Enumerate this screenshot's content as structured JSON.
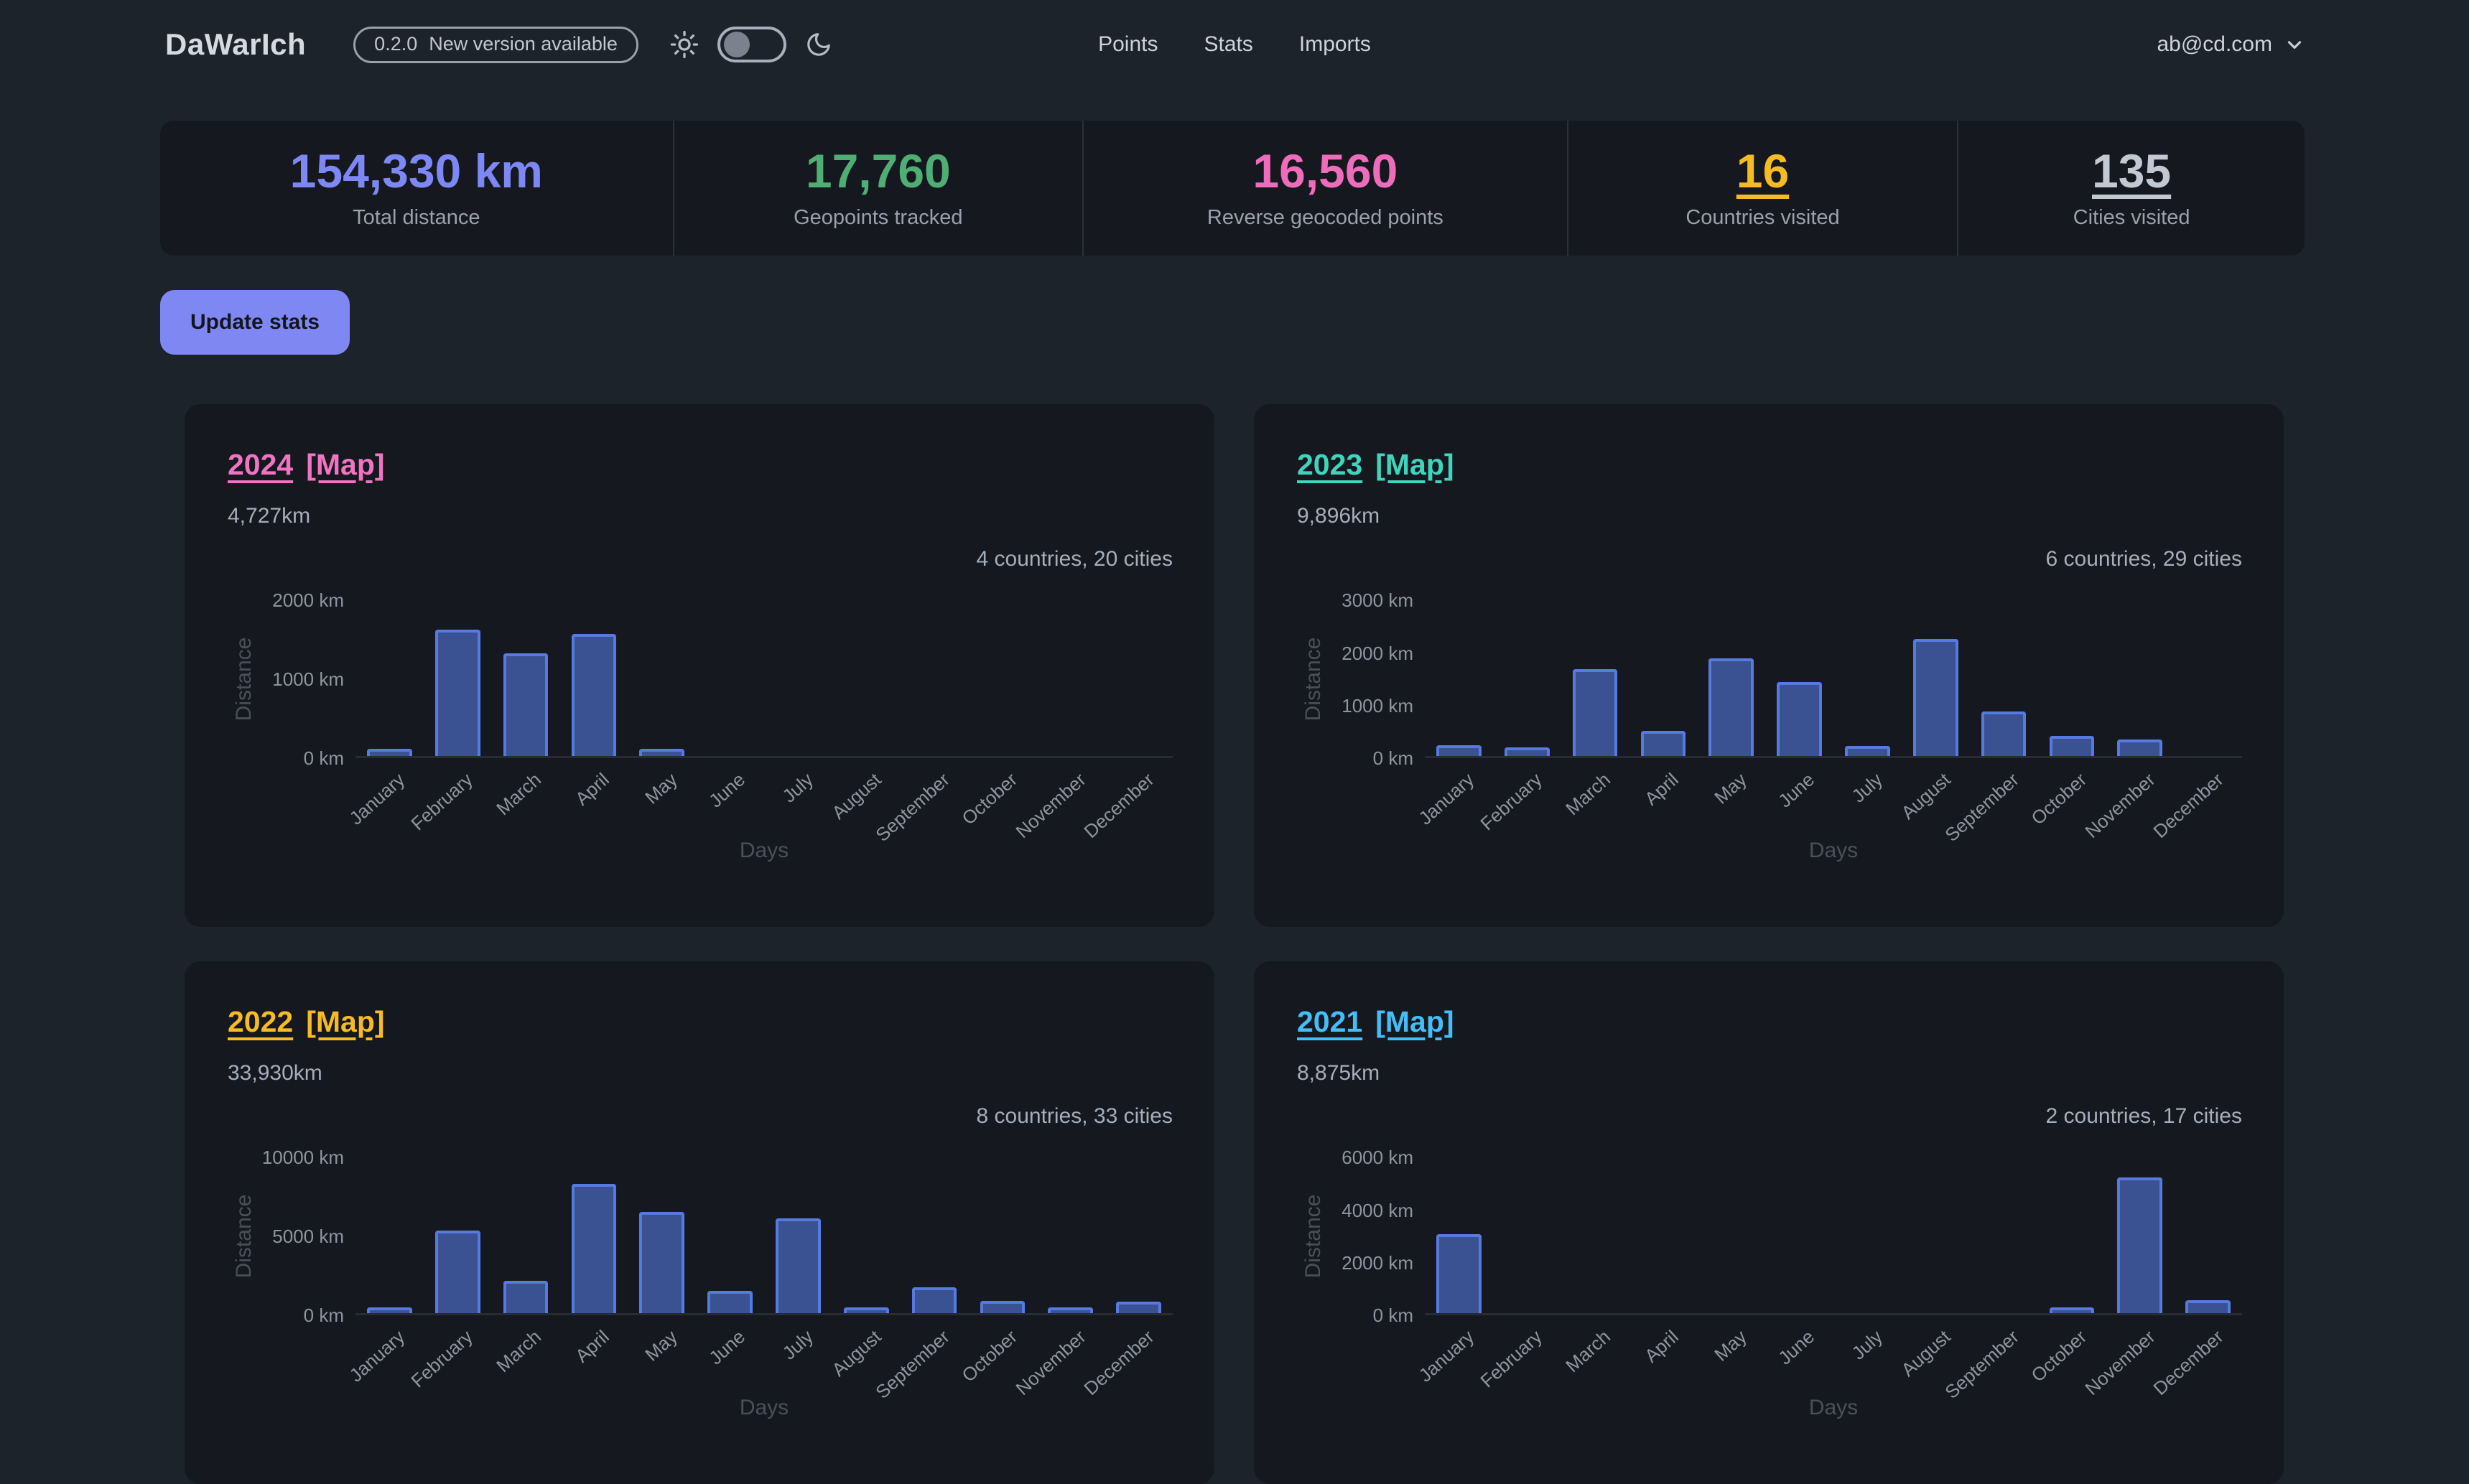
{
  "header": {
    "logo": "DaWarIch",
    "version_badge": {
      "version": "0.2.0",
      "message": "New version available"
    },
    "nav": [
      {
        "label": "Points"
      },
      {
        "label": "Stats"
      },
      {
        "label": "Imports"
      }
    ],
    "account": {
      "email": "ab@cd.com"
    },
    "icons": [
      "sun-icon",
      "moon-icon",
      "chevron-down-icon"
    ],
    "theme_toggle_on": false
  },
  "stats": [
    {
      "value": "154,330 km",
      "label": "Total distance",
      "color": "#7e88f5",
      "underline": false
    },
    {
      "value": "17,760",
      "label": "Geopoints tracked",
      "color": "#4fae74",
      "underline": false
    },
    {
      "value": "16,560",
      "label": "Reverse geocoded points",
      "color": "#ef6cbb",
      "underline": false
    },
    {
      "value": "16",
      "label": "Countries visited",
      "color": "#f6ba23",
      "underline": true
    },
    {
      "value": "135",
      "label": "Cities visited",
      "color": "#c3c9d3",
      "underline": true
    }
  ],
  "actions": {
    "update_stats": "Update stats"
  },
  "colors": {
    "page_bg": "#1d232b",
    "card_bg": "#15191f",
    "bar_fill": "#3a5292",
    "bar_border": "#567ae0",
    "button_bg": "#7f88f2"
  },
  "chart_data": [
    {
      "type": "bar",
      "year": "2024",
      "year_color": "#f074c2",
      "map_label": "[Map]",
      "total_distance": "4,727km",
      "summary": "4 countries, 20 cities",
      "categories": [
        "January",
        "February",
        "March",
        "April",
        "May",
        "June",
        "July",
        "August",
        "September",
        "October",
        "November",
        "December"
      ],
      "values": [
        90,
        1600,
        1300,
        1550,
        90,
        0,
        0,
        0,
        0,
        0,
        0,
        0
      ],
      "xlabel": "Days",
      "ylabel": "Distance",
      "ylim": [
        0,
        2000
      ],
      "yticks": [
        0,
        1000,
        2000
      ],
      "ytick_unit": " km"
    },
    {
      "type": "bar",
      "year": "2023",
      "year_color": "#3fd5bd",
      "map_label": "[Map]",
      "total_distance": "9,896km",
      "summary": "6 countries, 29 cities",
      "categories": [
        "January",
        "February",
        "March",
        "April",
        "May",
        "June",
        "July",
        "August",
        "September",
        "October",
        "November",
        "December"
      ],
      "values": [
        210,
        170,
        1650,
        480,
        1860,
        1410,
        190,
        2220,
        850,
        390,
        320,
        0
      ],
      "xlabel": "Days",
      "ylabel": "Distance",
      "ylim": [
        0,
        3000
      ],
      "yticks": [
        0,
        1000,
        2000,
        3000
      ],
      "ytick_unit": " km"
    },
    {
      "type": "bar",
      "year": "2022",
      "year_color": "#f8bb26",
      "map_label": "[Map]",
      "total_distance": "33,930km",
      "summary": "8 countries, 33 cities",
      "categories": [
        "January",
        "February",
        "March",
        "April",
        "May",
        "June",
        "July",
        "August",
        "September",
        "October",
        "November",
        "December"
      ],
      "values": [
        250,
        5250,
        2050,
        8200,
        6400,
        1400,
        6000,
        250,
        1650,
        800,
        300,
        750
      ],
      "xlabel": "Days",
      "ylabel": "Distance",
      "ylim": [
        0,
        10000
      ],
      "yticks": [
        0,
        5000,
        10000
      ],
      "ytick_unit": " km"
    },
    {
      "type": "bar",
      "year": "2021",
      "year_color": "#45bdf7",
      "map_label": "[Map]",
      "total_distance": "8,875km",
      "summary": "2 countries, 17 cities",
      "categories": [
        "January",
        "February",
        "March",
        "April",
        "May",
        "June",
        "July",
        "August",
        "September",
        "October",
        "November",
        "December"
      ],
      "values": [
        3000,
        0,
        0,
        0,
        0,
        0,
        0,
        0,
        0,
        180,
        5170,
        500
      ],
      "xlabel": "Days",
      "ylabel": "Distance",
      "ylim": [
        0,
        6000
      ],
      "yticks": [
        0,
        2000,
        4000,
        6000
      ],
      "ytick_unit": " km"
    }
  ]
}
